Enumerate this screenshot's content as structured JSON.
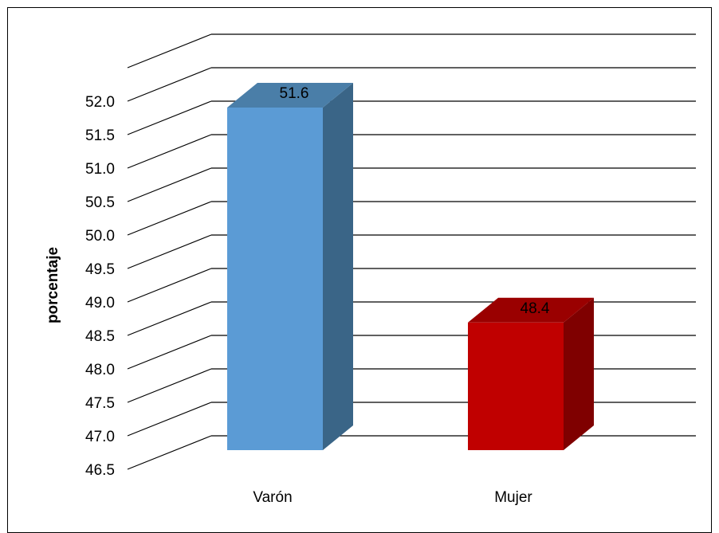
{
  "chart_data": {
    "type": "bar",
    "style": "3d-column",
    "title": "",
    "xlabel": "",
    "ylabel": "porcentaje",
    "ylim": [
      46.5,
      52.0
    ],
    "ytick_step": 0.5,
    "yticks": [
      "46.5",
      "47.0",
      "47.5",
      "48.0",
      "48.5",
      "49.0",
      "49.5",
      "50.0",
      "50.5",
      "51.0",
      "51.5",
      "52.0"
    ],
    "grid": true,
    "legend": "none",
    "categories": [
      "Varón",
      "Mujer"
    ],
    "values": [
      51.6,
      48.4
    ],
    "data_labels": [
      "51.6",
      "48.4"
    ],
    "colors": {
      "bars_front": [
        "#5b9bd5",
        "#c00000"
      ],
      "bars_side": [
        "#3a6587",
        "#7f0000"
      ],
      "bars_top": [
        "#4a7ea8",
        "#9a0000"
      ],
      "grid": "#000000"
    }
  }
}
